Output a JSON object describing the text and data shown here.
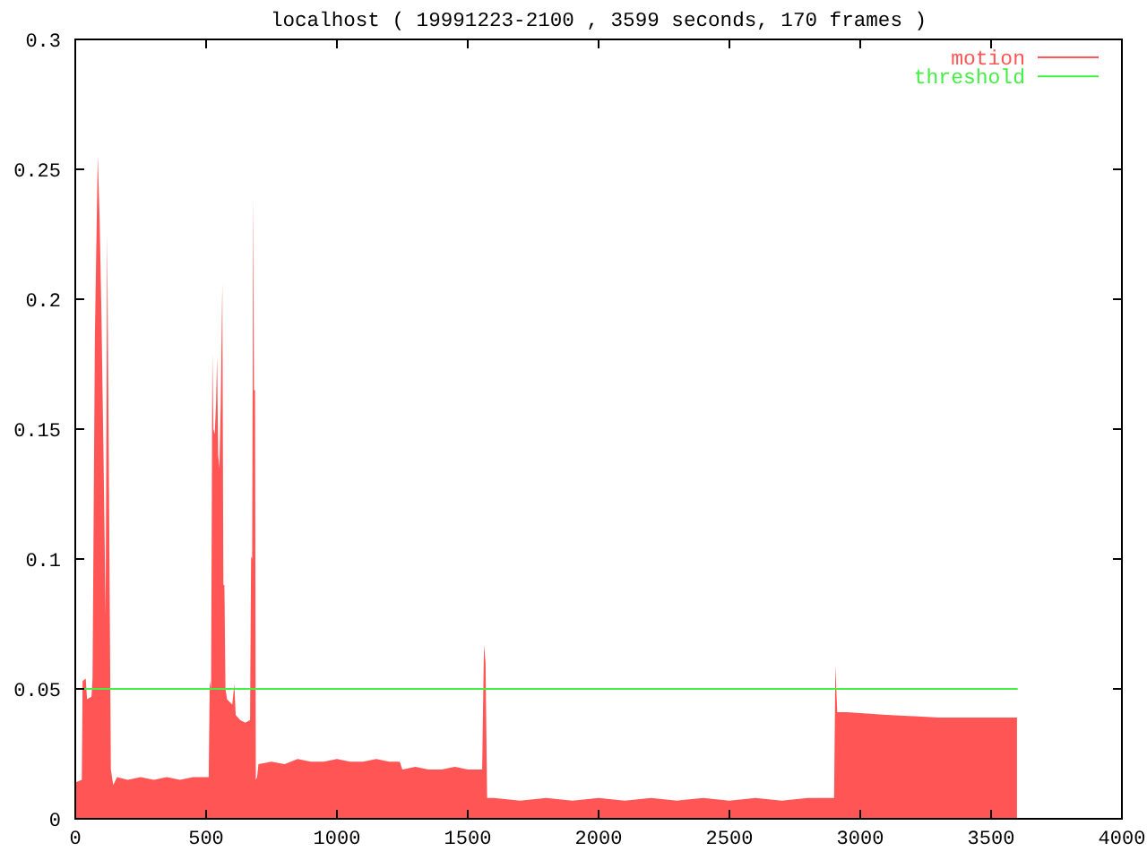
{
  "chart_data": {
    "type": "area",
    "title": "localhost ( 19991223-2100 , 3599 seconds, 170 frames )",
    "xlim": [
      0,
      4000
    ],
    "xticks": [
      0,
      500,
      1000,
      1500,
      2000,
      2500,
      3000,
      3500,
      4000
    ],
    "ylim": [
      0,
      0.3
    ],
    "yticks": [
      0,
      0.05,
      0.1,
      0.15,
      0.2,
      0.25,
      0.3
    ],
    "legend": "top right",
    "series": [
      {
        "name": "motion",
        "color": "#ff5555",
        "x": [
          0,
          25,
          28,
          40,
          45,
          62,
          66,
          75,
          86,
          93,
          100,
          109,
          116,
          122,
          129,
          136,
          145,
          160,
          200,
          250,
          300,
          350,
          400,
          450,
          500,
          510,
          514,
          519,
          524,
          528,
          533,
          538,
          542,
          546,
          551,
          556,
          562,
          566,
          570,
          574,
          580,
          600,
          608,
          613,
          630,
          650,
          668,
          672,
          676,
          680,
          683,
          687,
          690,
          695,
          700,
          750,
          800,
          850,
          900,
          950,
          1000,
          1050,
          1100,
          1150,
          1200,
          1240,
          1250,
          1300,
          1350,
          1400,
          1450,
          1500,
          1555,
          1562,
          1568,
          1574,
          1600,
          1700,
          1800,
          1900,
          2000,
          2100,
          2200,
          2300,
          2400,
          2500,
          2600,
          2700,
          2800,
          2900,
          2905,
          2912,
          2950,
          3100,
          3300,
          3500,
          3599
        ],
        "values": [
          0.014,
          0.015,
          0.053,
          0.054,
          0.046,
          0.047,
          0.054,
          0.186,
          0.255,
          0.231,
          0.194,
          0.132,
          0.078,
          0.225,
          0.126,
          0.019,
          0.013,
          0.016,
          0.015,
          0.016,
          0.015,
          0.016,
          0.015,
          0.016,
          0.016,
          0.016,
          0.053,
          0.05,
          0.179,
          0.15,
          0.148,
          0.16,
          0.178,
          0.14,
          0.135,
          0.16,
          0.206,
          0.09,
          0.09,
          0.05,
          0.046,
          0.044,
          0.052,
          0.04,
          0.038,
          0.037,
          0.038,
          0.101,
          0.1,
          0.24,
          0.165,
          0.165,
          0.015,
          0.016,
          0.021,
          0.022,
          0.021,
          0.023,
          0.022,
          0.022,
          0.023,
          0.022,
          0.022,
          0.023,
          0.022,
          0.022,
          0.019,
          0.02,
          0.019,
          0.019,
          0.02,
          0.019,
          0.019,
          0.067,
          0.06,
          0.008,
          0.008,
          0.007,
          0.008,
          0.007,
          0.008,
          0.007,
          0.008,
          0.007,
          0.008,
          0.007,
          0.008,
          0.007,
          0.008,
          0.008,
          0.059,
          0.041,
          0.041,
          0.04,
          0.039,
          0.039,
          0.039
        ]
      },
      {
        "name": "threshold",
        "type": "line",
        "color": "#44ee44",
        "x": [
          0,
          3599
        ],
        "values": [
          0.05,
          0.05
        ]
      }
    ]
  }
}
